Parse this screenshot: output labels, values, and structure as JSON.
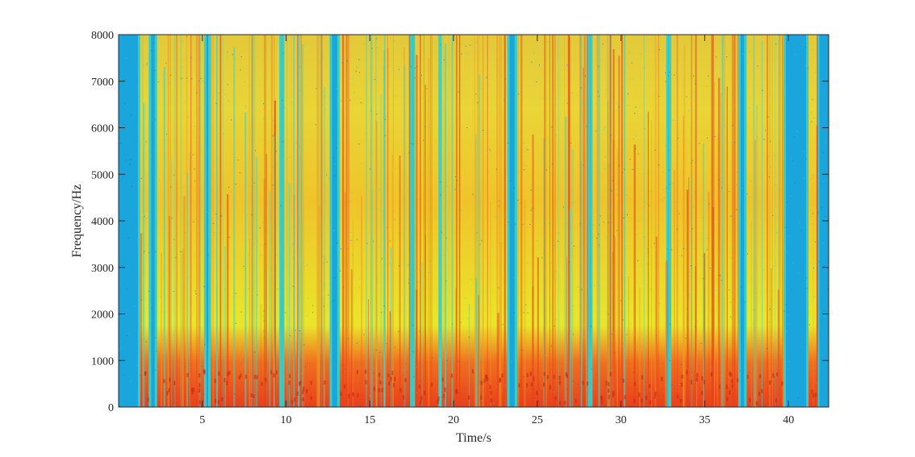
{
  "chart_data": {
    "type": "heatmap",
    "subtype": "spectrogram",
    "title": "",
    "xlabel": "Time/s",
    "ylabel": "Frequency/Hz",
    "xlim": [
      0,
      42.4
    ],
    "ylim": [
      0,
      8000
    ],
    "xticks": [
      5,
      10,
      15,
      20,
      25,
      30,
      35,
      40
    ],
    "yticks": [
      0,
      1000,
      2000,
      3000,
      4000,
      5000,
      6000,
      7000,
      8000
    ],
    "colormap": "jet",
    "grid": false,
    "speech_segments_s": [
      [
        1.3,
        1.8
      ],
      [
        2.3,
        5.1
      ],
      [
        5.5,
        9.6
      ],
      [
        9.9,
        12.6
      ],
      [
        13.2,
        17.4
      ],
      [
        17.7,
        19.1
      ],
      [
        19.3,
        23.2
      ],
      [
        23.8,
        28.0
      ],
      [
        28.3,
        32.7
      ],
      [
        33.0,
        37.0
      ],
      [
        37.5,
        39.7
      ],
      [
        41.2,
        41.7
      ]
    ],
    "colors": {
      "silence": "#1aa6dc",
      "low_energy": "#3fd3c6",
      "mid_energy": "#e9e62a",
      "high_energy": "#e8401c"
    }
  }
}
